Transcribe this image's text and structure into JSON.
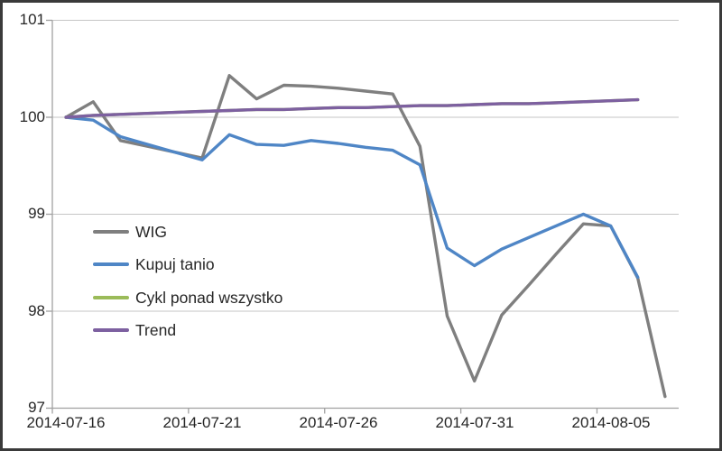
{
  "chart_data": {
    "type": "line",
    "title": "",
    "xlabel": "",
    "ylabel": "",
    "ylim": [
      97,
      101
    ],
    "grid": "horizontal",
    "legend_position": "inside-left",
    "categories": [
      "2014-07-16",
      "2014-07-17",
      "2014-07-18",
      "2014-07-19",
      "2014-07-20",
      "2014-07-21",
      "2014-07-22",
      "2014-07-23",
      "2014-07-24",
      "2014-07-25",
      "2014-07-26",
      "2014-07-27",
      "2014-07-28",
      "2014-07-29",
      "2014-07-30",
      "2014-07-31",
      "2014-08-01",
      "2014-08-02",
      "2014-08-03",
      "2014-08-04",
      "2014-08-05",
      "2014-08-06",
      "2014-08-07"
    ],
    "x_tick_labels": [
      "2014-07-16",
      "2014-07-21",
      "2014-07-26",
      "2014-07-31",
      "2014-08-05"
    ],
    "x_tick_indices": [
      0,
      5,
      10,
      15,
      20
    ],
    "y_tick_labels": [
      "101",
      "100",
      "99",
      "98",
      "97"
    ],
    "series": [
      {
        "name": "WIG",
        "color": "#7f7f7f",
        "values": [
          100.0,
          100.16,
          99.76,
          99.7,
          99.64,
          99.58,
          100.43,
          100.19,
          100.33,
          100.32,
          100.3,
          100.27,
          100.24,
          99.7,
          97.95,
          97.28,
          97.96,
          98.27,
          98.59,
          98.9,
          98.88,
          98.34,
          97.12
        ]
      },
      {
        "name": "Kupuj tanio",
        "color": "#4f86c6",
        "values": [
          100.0,
          99.97,
          99.8,
          99.72,
          99.64,
          99.56,
          99.82,
          99.72,
          99.71,
          99.76,
          99.73,
          99.69,
          99.66,
          99.51,
          98.65,
          98.47,
          98.64,
          98.76,
          98.88,
          99.0,
          98.88,
          98.35,
          null
        ]
      },
      {
        "name": "Cykl ponad wszystko",
        "color": "#9bbb59",
        "values": [
          100.0,
          100.02,
          100.03,
          100.04,
          100.05,
          100.06,
          100.07,
          100.08,
          100.08,
          100.09,
          100.1,
          100.1,
          100.11,
          100.12,
          100.12,
          100.13,
          100.14,
          100.14,
          100.15,
          100.16,
          100.17,
          100.18,
          null
        ]
      },
      {
        "name": "Trend",
        "color": "#7d60a0",
        "values": [
          100.0,
          100.02,
          100.03,
          100.04,
          100.05,
          100.06,
          100.07,
          100.08,
          100.08,
          100.09,
          100.1,
          100.1,
          100.11,
          100.12,
          100.12,
          100.13,
          100.14,
          100.14,
          100.15,
          100.16,
          100.17,
          100.18,
          null
        ]
      }
    ]
  },
  "colors": {
    "background": "#ffffff",
    "border": "#3a3a3a",
    "gridline": "#c6c6c6",
    "axis": "#a0a0a0",
    "text": "#262626"
  }
}
